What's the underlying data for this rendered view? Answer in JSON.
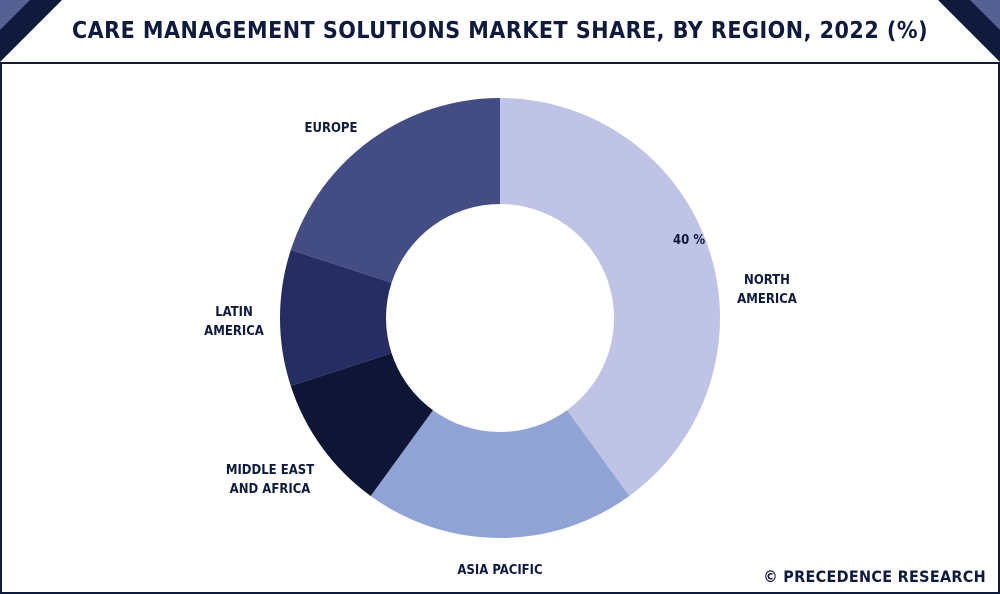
{
  "chart_data": {
    "type": "pie",
    "style": "donut",
    "title": "CARE MANAGEMENT SOLUTIONS MARKET SHARE, BY REGION, 2022 (%)",
    "slices": [
      {
        "label_lines": [
          "NORTH",
          "AMERICA"
        ],
        "value": 40,
        "color": "#bfc4e6",
        "value_label": "40 %"
      },
      {
        "label_lines": [
          "ASIA PACIFIC"
        ],
        "value": 20,
        "color": "#8fa4d4"
      },
      {
        "label_lines": [
          "MIDDLE EAST",
          "AND AFRICA"
        ],
        "value": 10,
        "color": "#0e1535"
      },
      {
        "label_lines": [
          "LATIN",
          "AMERICA"
        ],
        "value": 10,
        "color": "#262d63"
      },
      {
        "label_lines": [
          "EUROPE"
        ],
        "value": 20,
        "color": "#444c84"
      }
    ],
    "start_angle_deg": 0,
    "direction": "clockwise"
  },
  "credit": "© PRECEDENCE RESEARCH",
  "colors": {
    "navy": "#0f1a3d",
    "accent": "#545f92"
  }
}
